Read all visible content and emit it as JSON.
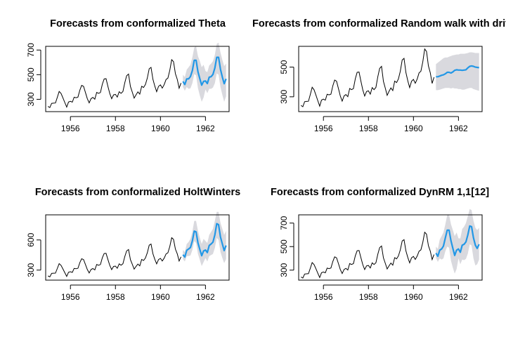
{
  "chart_data": [
    {
      "type": "line",
      "title": "Forecasts from conformalized Theta",
      "xlabel": "",
      "ylabel": "",
      "xlim": [
        1954.9,
        1963.05
      ],
      "ylim": [
        200,
        730
      ],
      "x_ticks": [
        1956,
        1958,
        1960,
        1962
      ],
      "y_ticks": [
        300,
        500,
        700
      ],
      "grid": false,
      "history": {
        "start": 1955.0,
        "step": 0.0833,
        "values": [
          242,
          233,
          267,
          269,
          270,
          315,
          364,
          347,
          312,
          274,
          237,
          278,
          284,
          277,
          317,
          313,
          318,
          374,
          413,
          405,
          355,
          306,
          271,
          306,
          315,
          301,
          356,
          348,
          355,
          422,
          465,
          467,
          404,
          347,
          305,
          336,
          340,
          318,
          362,
          348,
          363,
          435,
          491,
          505,
          404,
          359,
          310,
          337,
          360,
          342,
          406,
          396,
          420,
          472,
          548,
          559,
          463,
          407,
          362,
          405,
          417,
          391,
          419,
          461,
          472,
          535,
          622,
          606,
          508,
          461,
          390,
          432
        ]
      },
      "forecast": {
        "start": 1961.0,
        "step": 0.0833,
        "mean": [
          445,
          420,
          466,
          466,
          485,
          533,
          617,
          617,
          523,
          466,
          415,
          446,
          449,
          428,
          480,
          484,
          502,
          554,
          641,
          641,
          544,
          480,
          427,
          466
        ],
        "lower": [
          400,
          370,
          400,
          385,
          390,
          430,
          505,
          495,
          390,
          330,
          280,
          315,
          380,
          350,
          385,
          385,
          395,
          430,
          510,
          500,
          400,
          335,
          280,
          325
        ],
        "upper": [
          500,
          480,
          540,
          560,
          580,
          640,
          720,
          730,
          650,
          610,
          560,
          580,
          530,
          520,
          575,
          590,
          610,
          660,
          750,
          760,
          680,
          620,
          570,
          590
        ]
      },
      "colors": {
        "history": "#000000",
        "forecast": "#2297e6",
        "interval": "#d9d9de"
      }
    },
    {
      "type": "line",
      "title": "Forecasts from conformalized Random walk with drift",
      "xlabel": "",
      "ylabel": "",
      "xlim": [
        1954.9,
        1963.05
      ],
      "ylim": [
        200,
        640
      ],
      "x_ticks": [
        1956,
        1958,
        1960,
        1962
      ],
      "y_ticks": [
        300,
        500
      ],
      "grid": false,
      "history": {
        "start": 1955.0,
        "step": 0.0833,
        "values": [
          242,
          233,
          267,
          269,
          270,
          315,
          364,
          347,
          312,
          274,
          237,
          278,
          284,
          277,
          317,
          313,
          318,
          374,
          413,
          405,
          355,
          306,
          271,
          306,
          315,
          301,
          356,
          348,
          355,
          422,
          465,
          467,
          404,
          347,
          305,
          336,
          340,
          318,
          362,
          348,
          363,
          435,
          491,
          505,
          404,
          359,
          310,
          337,
          360,
          342,
          406,
          396,
          420,
          472,
          548,
          559,
          463,
          407,
          362,
          405,
          417,
          391,
          419,
          461,
          472,
          535,
          622,
          606,
          508,
          461,
          390,
          432
        ]
      },
      "forecast": {
        "start": 1961.0,
        "step": 0.0833,
        "mean": [
          435,
          435,
          440,
          445,
          448,
          455,
          465,
          465,
          460,
          468,
          478,
          482,
          480,
          480,
          478,
          480,
          482,
          495,
          505,
          508,
          505,
          500,
          498,
          496
        ],
        "lower": [
          345,
          345,
          348,
          352,
          356,
          360,
          360,
          360,
          356,
          360,
          356,
          356,
          352,
          352,
          348,
          348,
          352,
          356,
          360,
          360,
          352,
          348,
          344,
          340
        ],
        "upper": [
          520,
          530,
          540,
          550,
          560,
          565,
          565,
          570,
          575,
          580,
          582,
          585,
          585,
          590,
          590,
          590,
          592,
          595,
          600,
          600,
          598,
          595,
          595,
          595
        ]
      },
      "colors": {
        "history": "#000000",
        "forecast": "#2297e6",
        "interval": "#d9d9de"
      }
    },
    {
      "type": "line",
      "title": "Forecasts from conformalized HoltWinters",
      "xlabel": "",
      "ylabel": "",
      "xlim": [
        1954.9,
        1963.05
      ],
      "ylim": [
        200,
        850
      ],
      "x_ticks": [
        1956,
        1958,
        1960,
        1962
      ],
      "y_ticks": [
        300,
        600
      ],
      "grid": false,
      "history": {
        "start": 1955.0,
        "step": 0.0833,
        "values": [
          242,
          233,
          267,
          269,
          270,
          315,
          364,
          347,
          312,
          274,
          237,
          278,
          284,
          277,
          317,
          313,
          318,
          374,
          413,
          405,
          355,
          306,
          271,
          306,
          315,
          301,
          356,
          348,
          355,
          422,
          465,
          467,
          404,
          347,
          305,
          336,
          340,
          318,
          362,
          348,
          363,
          435,
          491,
          505,
          404,
          359,
          310,
          337,
          360,
          342,
          406,
          396,
          420,
          472,
          548,
          559,
          463,
          407,
          362,
          405,
          417,
          391,
          419,
          461,
          472,
          535,
          622,
          606,
          508,
          461,
          390,
          432
        ]
      },
      "forecast": {
        "start": 1961.0,
        "step": 0.0833,
        "mean": [
          453,
          430,
          497,
          510,
          525,
          590,
          688,
          680,
          570,
          505,
          443,
          491,
          500,
          475,
          545,
          560,
          578,
          650,
          762,
          752,
          630,
          560,
          494,
          545
        ],
        "lower": [
          410,
          385,
          440,
          440,
          445,
          500,
          590,
          570,
          460,
          400,
          340,
          380,
          420,
          385,
          440,
          450,
          460,
          520,
          620,
          600,
          480,
          420,
          370,
          410
        ],
        "upper": [
          500,
          480,
          560,
          580,
          610,
          680,
          790,
          790,
          690,
          620,
          560,
          610,
          590,
          570,
          650,
          680,
          710,
          790,
          880,
          880,
          770,
          710,
          650,
          690
        ]
      },
      "colors": {
        "history": "#000000",
        "forecast": "#2297e6",
        "interval": "#d9d9de"
      }
    },
    {
      "type": "line",
      "title": "Forecasts from conformalized DynRM 1,1[12]",
      "xlabel": "",
      "ylabel": "",
      "xlim": [
        1954.9,
        1963.05
      ],
      "ylim": [
        215,
        770
      ],
      "x_ticks": [
        1956,
        1958,
        1960,
        1962
      ],
      "y_ticks": [
        300,
        500,
        700
      ],
      "grid": false,
      "history": {
        "start": 1955.0,
        "step": 0.0833,
        "values": [
          242,
          233,
          267,
          269,
          270,
          315,
          364,
          347,
          312,
          274,
          237,
          278,
          284,
          277,
          317,
          313,
          318,
          374,
          413,
          405,
          355,
          306,
          271,
          306,
          315,
          301,
          356,
          348,
          355,
          422,
          465,
          467,
          404,
          347,
          305,
          336,
          340,
          318,
          362,
          348,
          363,
          435,
          491,
          505,
          404,
          359,
          310,
          337,
          360,
          342,
          406,
          396,
          420,
          472,
          548,
          559,
          463,
          407,
          362,
          405,
          417,
          391,
          419,
          461,
          472,
          535,
          622,
          606,
          508,
          461,
          390,
          432
        ]
      },
      "forecast": {
        "start": 1961.0,
        "step": 0.0833,
        "mean": [
          445,
          418,
          470,
          480,
          505,
          575,
          640,
          640,
          550,
          485,
          425,
          470,
          480,
          452,
          512,
          520,
          540,
          600,
          675,
          670,
          575,
          512,
          485,
          520
        ],
        "lower": [
          405,
          370,
          400,
          390,
          400,
          460,
          500,
          490,
          380,
          320,
          270,
          310,
          400,
          350,
          390,
          385,
          395,
          440,
          520,
          510,
          400,
          340,
          350,
          390
        ],
        "upper": [
          500,
          480,
          560,
          590,
          620,
          690,
          770,
          770,
          690,
          640,
          590,
          620,
          570,
          570,
          650,
          670,
          700,
          760,
          820,
          810,
          720,
          660,
          640,
          660
        ]
      },
      "colors": {
        "history": "#000000",
        "forecast": "#2297e6",
        "interval": "#d9d9de"
      }
    }
  ]
}
